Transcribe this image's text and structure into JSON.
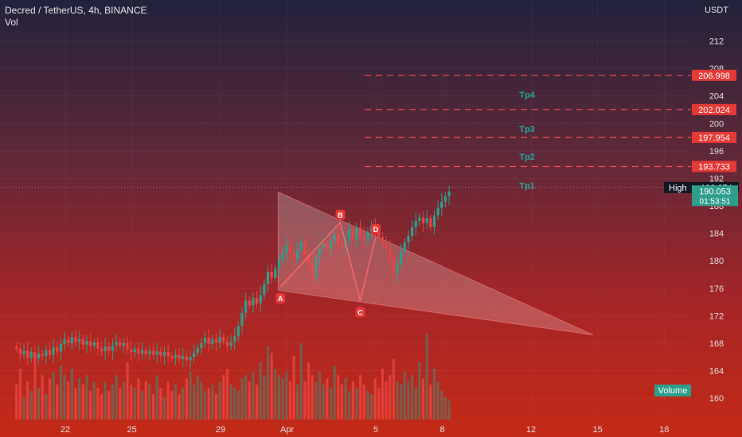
{
  "header": {
    "title": "Decred / TetherUS, 4h, BINANCE",
    "volume_label": "Vol"
  },
  "currency": "USDT",
  "colors": {
    "up": "#2e9e8c",
    "down": "#e64545",
    "line": "#ff4d4d",
    "tp_text": "#26a69a",
    "pattern": "#ff6b6b"
  },
  "chart_data": {
    "type": "candlestick",
    "ylim": [
      157,
      216
    ],
    "y_ticks": [
      160,
      164,
      168,
      172,
      176,
      180,
      184,
      188,
      192,
      196,
      200,
      204,
      208,
      212
    ],
    "x_ticks": [
      {
        "label": "22",
        "day": 22
      },
      {
        "label": "25",
        "day": 25
      },
      {
        "label": "29",
        "day": 29
      },
      {
        "label": "Apr",
        "day": 32
      },
      {
        "label": "5",
        "day": 36
      },
      {
        "label": "8",
        "day": 39
      },
      {
        "label": "12",
        "day": 43
      },
      {
        "label": "15",
        "day": 46
      },
      {
        "label": "18",
        "day": 49
      }
    ],
    "xlim": [
      19.6,
      51.7
    ],
    "targets": [
      {
        "label": "Tp1",
        "price": 193.733
      },
      {
        "label": "Tp2",
        "price": 197.954
      },
      {
        "label": "Tp3",
        "price": 202.024
      },
      {
        "label": "Tp4",
        "price": 206.998
      }
    ],
    "high_label": "High",
    "high_price": "190.674",
    "last_price": "190.053",
    "countdown": "01:53:51",
    "pattern_points": [
      {
        "label": "A",
        "day": 31.7,
        "price": 176.2
      },
      {
        "label": "B",
        "day": 34.4,
        "price": 185.6
      },
      {
        "label": "C",
        "day": 35.3,
        "price": 174.2
      },
      {
        "label": "D",
        "day": 36.0,
        "price": 183.5
      }
    ],
    "wedge": [
      {
        "day": 31.6,
        "price": 190.0
      },
      {
        "day": 45.8,
        "price": 169.2
      },
      {
        "day": 31.6,
        "price": 175.7
      }
    ],
    "volume_badge": "Volume",
    "candles_start_day": 19.8,
    "candles_step_day": 0.1667,
    "closes": [
      167.2,
      166.4,
      166.9,
      165.9,
      166.7,
      165.8,
      166.5,
      166.1,
      167.0,
      166.3,
      167.4,
      166.8,
      167.9,
      168.5,
      168.0,
      168.9,
      168.2,
      168.6,
      167.8,
      168.3,
      167.6,
      168.1,
      167.2,
      166.8,
      167.5,
      166.9,
      167.7,
      168.2,
      167.6,
      168.0,
      167.1,
      166.7,
      167.2,
      166.5,
      167.0,
      166.4,
      166.9,
      166.3,
      166.8,
      166.2,
      166.7,
      166.1,
      165.8,
      166.3,
      165.7,
      166.1,
      165.5,
      166.0,
      166.6,
      167.3,
      168.0,
      168.8,
      167.9,
      168.6,
      168.1,
      168.9,
      168.3,
      167.6,
      168.2,
      169.0,
      170.5,
      172.4,
      174.2,
      173.5,
      174.6,
      173.8,
      175.0,
      176.6,
      178.4,
      177.5,
      178.8,
      180.2,
      181.1,
      182.2,
      181.0,
      180.3,
      181.6,
      182.8,
      180.9,
      179.6,
      177.5,
      180.4,
      181.8,
      182.5,
      181.6,
      182.9,
      183.8,
      182.4,
      181.9,
      183.2,
      184.6,
      183.1,
      184.8,
      183.6,
      183.0,
      184.2,
      185.0,
      184.1,
      183.4,
      182.6,
      181.8,
      180.4,
      178.2,
      179.6,
      181.3,
      182.7,
      183.6,
      184.9,
      185.8,
      186.3,
      185.5,
      186.2,
      184.9,
      186.6,
      187.7,
      188.6,
      189.4,
      190.05
    ],
    "volumes": [
      0.55,
      0.8,
      0.35,
      0.6,
      0.45,
      1.0,
      0.5,
      0.7,
      0.4,
      0.65,
      0.75,
      0.55,
      0.85,
      0.7,
      0.6,
      0.8,
      0.5,
      0.65,
      0.55,
      0.7,
      0.45,
      0.6,
      0.5,
      0.4,
      0.6,
      0.45,
      0.55,
      0.7,
      0.5,
      0.6,
      0.9,
      0.55,
      0.5,
      0.65,
      0.45,
      0.6,
      0.55,
      0.4,
      0.7,
      0.5,
      0.35,
      0.6,
      0.45,
      0.55,
      0.4,
      0.5,
      0.65,
      0.75,
      0.55,
      0.7,
      0.6,
      0.45,
      0.5,
      0.55,
      0.4,
      0.6,
      0.7,
      0.8,
      0.55,
      0.5,
      0.45,
      0.65,
      0.7,
      0.6,
      0.75,
      0.55,
      0.9,
      0.7,
      1.15,
      1.05,
      0.8,
      0.7,
      0.65,
      0.75,
      0.6,
      1.0,
      0.55,
      1.2,
      0.6,
      0.9,
      0.7,
      0.6,
      0.75,
      0.55,
      0.65,
      0.5,
      0.85,
      0.7,
      0.55,
      0.65,
      0.45,
      0.6,
      0.5,
      0.7,
      0.55,
      0.45,
      0.4,
      0.65,
      0.5,
      0.8,
      0.6,
      0.7,
      0.95,
      0.6,
      0.55,
      0.75,
      0.6,
      0.7,
      0.5,
      0.9,
      0.65,
      1.35,
      0.55,
      0.8,
      0.6,
      0.45,
      0.35,
      0.3
    ]
  }
}
